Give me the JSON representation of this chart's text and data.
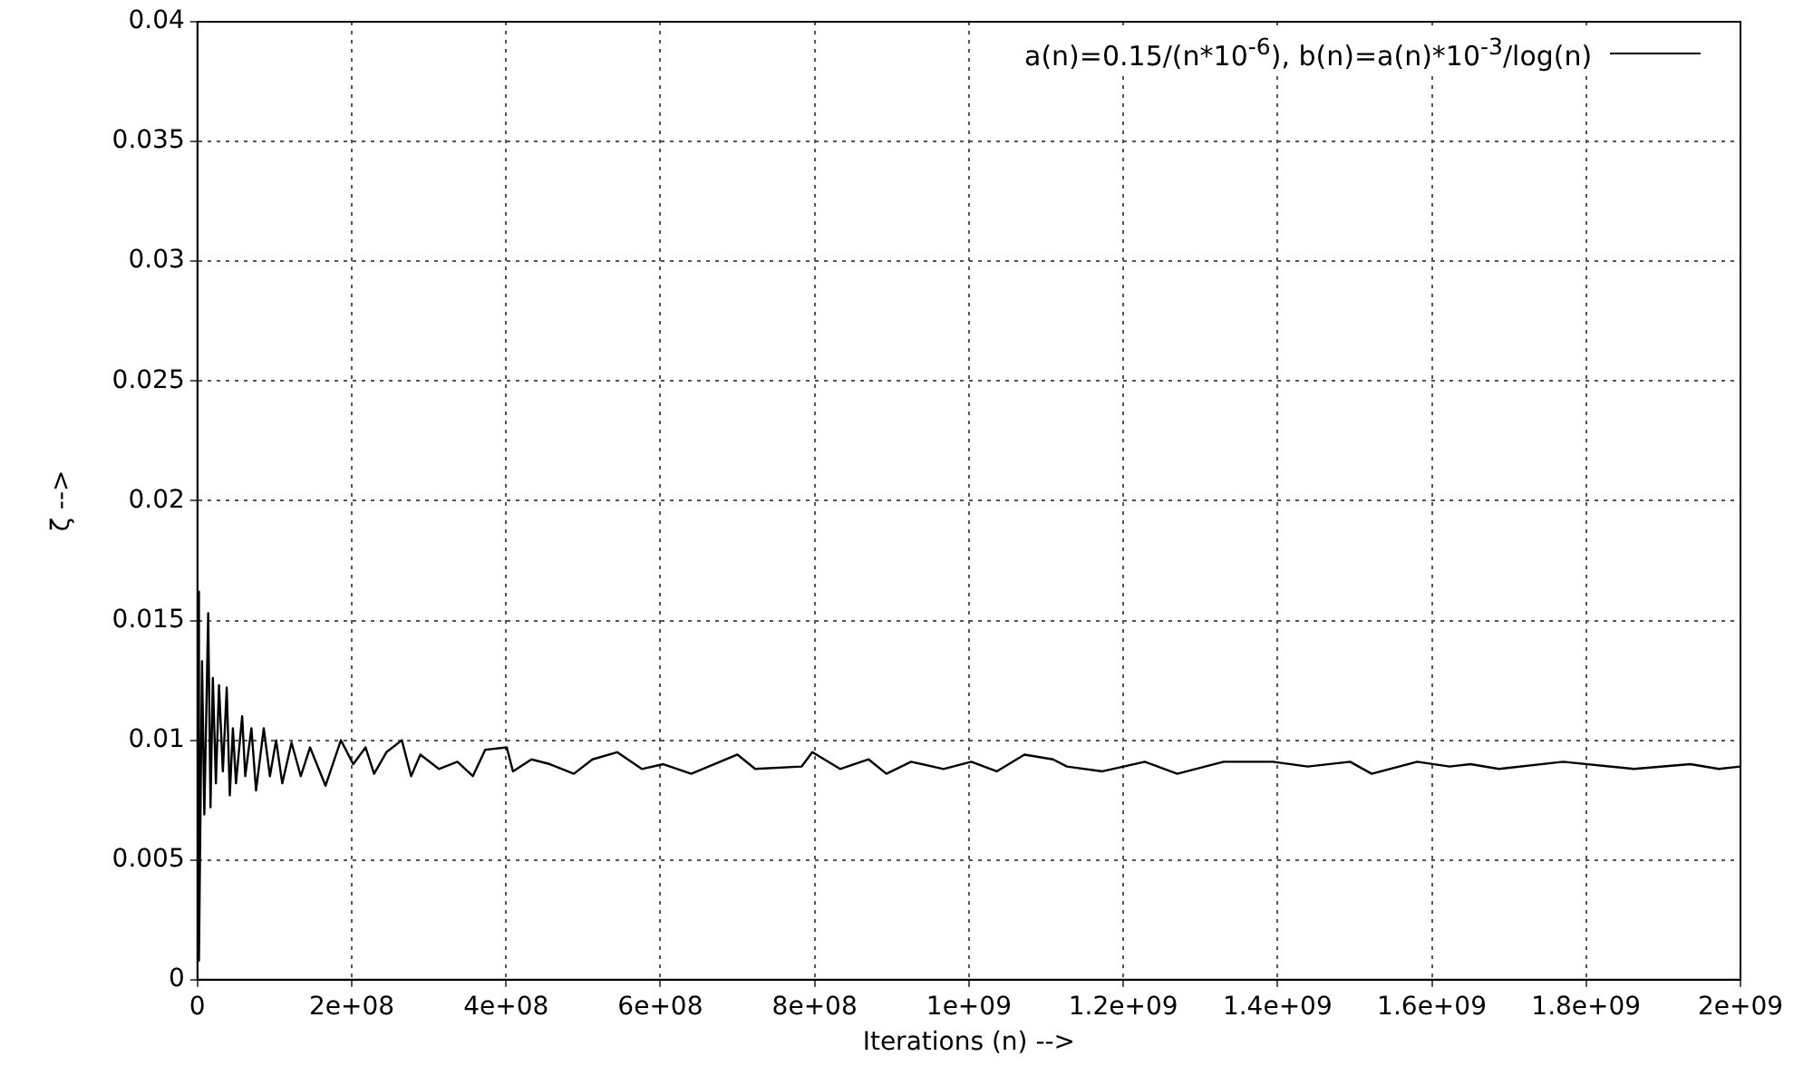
{
  "chart_data": {
    "type": "line",
    "xlabel": "Iterations (n) -->",
    "ylabel": "ζ -->",
    "xlim": [
      0,
      2000000000
    ],
    "xticks": [
      0,
      {
        "value": 200000000,
        "label": "2e+08"
      },
      {
        "value": 400000000,
        "label": "4e+08"
      },
      {
        "value": 600000000,
        "label": "6e+08"
      },
      {
        "value": 800000000,
        "label": "8e+08"
      },
      {
        "value": 1000000000,
        "label": "1e+09"
      },
      {
        "value": 1200000000,
        "label": "1.2e+09"
      },
      {
        "value": 1400000000,
        "label": "1.4e+09"
      },
      {
        "value": 1600000000,
        "label": "1.6e+09"
      },
      {
        "value": 1800000000,
        "label": "1.8e+09"
      },
      {
        "value": 2000000000,
        "label": "2e+09"
      }
    ],
    "ylim": [
      0,
      0.04
    ],
    "yticks": [
      0,
      0.005,
      0.01,
      0.015,
      0.02,
      0.025,
      0.03,
      0.035,
      0.04
    ],
    "grid": true,
    "legend": "top right",
    "marker": "none",
    "line_style": "solid",
    "series": [
      {
        "name": "a(n)=0.15/(n*10$^{-6}$), b(n)=a(n)*10$^{-3}$/log(n)",
        "color": "#000000",
        "x": [
          1000000,
          2000000,
          6000000,
          9000000,
          14000000,
          17000000,
          20000000,
          24000000,
          28000000,
          33000000,
          38000000,
          42000000,
          46000000,
          50000000,
          58000000,
          62000000,
          70000000,
          76000000,
          86000000,
          94000000,
          102000000,
          110000000,
          122000000,
          134000000,
          146000000,
          166000000,
          186000000,
          202000000,
          218000000,
          229000000,
          245000000,
          265000000,
          277000000,
          289000000,
          313000000,
          337000000,
          357000000,
          373000000,
          401000000,
          409000000,
          433000000,
          457000000,
          488000000,
          512000000,
          544000000,
          576000000,
          604000000,
          640000000,
          700000000,
          723000000,
          783000000,
          797000000,
          833000000,
          870000000,
          893000000,
          925000000,
          967000000,
          1003000000,
          1036000000,
          1072000000,
          1109000000,
          1127000000,
          1173000000,
          1228000000,
          1270000000,
          1330000000,
          1394000000,
          1439000000,
          1494000000,
          1522000000,
          1581000000,
          1623000000,
          1650000000,
          1687000000,
          1770000000,
          1862000000,
          1935000000,
          1972000000,
          2000000000
        ],
        "values": [
          0.0162,
          0.0008,
          0.0133,
          0.0069,
          0.0153,
          0.0072,
          0.0126,
          0.0082,
          0.0123,
          0.0087,
          0.0122,
          0.0077,
          0.0105,
          0.0082,
          0.011,
          0.0085,
          0.0105,
          0.0079,
          0.0105,
          0.0085,
          0.01,
          0.0082,
          0.0099,
          0.0085,
          0.0097,
          0.0081,
          0.01,
          0.009,
          0.0097,
          0.0086,
          0.0095,
          0.01,
          0.0085,
          0.0094,
          0.0088,
          0.0091,
          0.0085,
          0.0096,
          0.0097,
          0.0087,
          0.0092,
          0.009,
          0.0086,
          0.0092,
          0.0095,
          0.0088,
          0.009,
          0.0086,
          0.0094,
          0.0088,
          0.0089,
          0.0095,
          0.0088,
          0.0092,
          0.0086,
          0.0091,
          0.0088,
          0.0091,
          0.0087,
          0.0094,
          0.0092,
          0.0089,
          0.0087,
          0.0091,
          0.0086,
          0.0091,
          0.0091,
          0.0089,
          0.0091,
          0.0086,
          0.0091,
          0.0089,
          0.009,
          0.0088,
          0.0091,
          0.0088,
          0.009,
          0.0088,
          0.0089
        ]
      }
    ]
  }
}
